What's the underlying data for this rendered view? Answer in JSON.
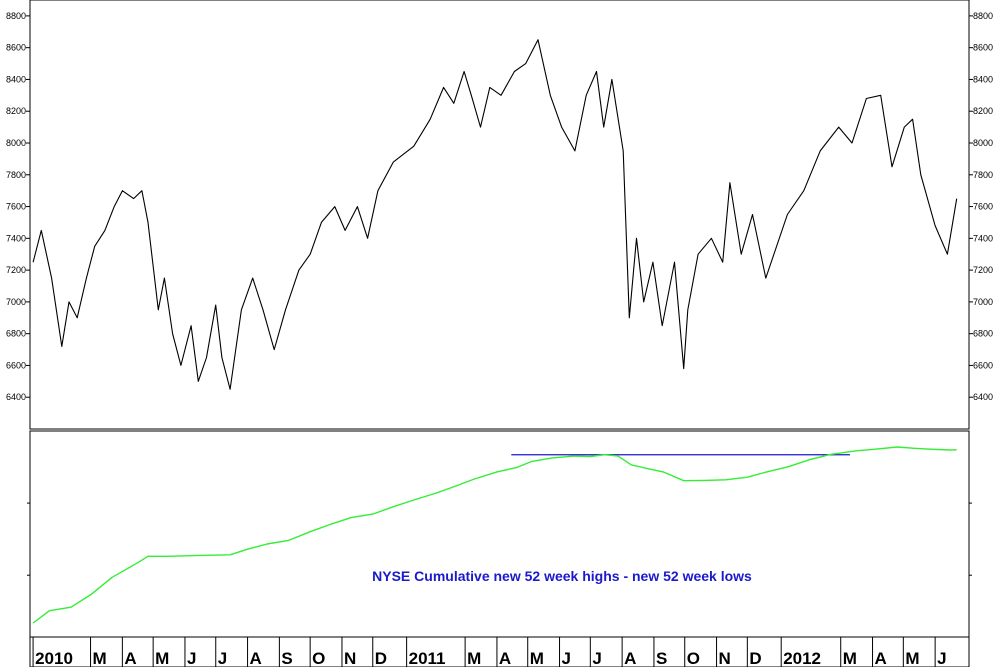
{
  "chart_data": [
    {
      "type": "line",
      "panel": "price",
      "ylim": [
        6200,
        8900
      ],
      "y_ticks": [
        6400,
        6600,
        6800,
        7000,
        7200,
        7400,
        7600,
        7800,
        8000,
        8200,
        8400,
        8600,
        8800
      ],
      "y_tick_labels": [
        "6400",
        "6600",
        "6800",
        "7000",
        "7200",
        "7400",
        "7600",
        "7800",
        "8000",
        "8200",
        "8400",
        "8600",
        "8800"
      ],
      "color": "#000000",
      "series": [
        {
          "x": [
            "2010-01-04",
            "2010-01-12",
            "2010-01-22",
            "2010-02-01",
            "2010-02-08",
            "2010-02-16",
            "2010-02-25",
            "2010-03-05",
            "2010-03-15",
            "2010-03-24",
            "2010-04-01",
            "2010-04-12",
            "2010-04-20",
            "2010-04-26",
            "2010-05-06",
            "2010-05-12",
            "2010-05-20",
            "2010-05-28",
            "2010-06-07",
            "2010-06-14",
            "2010-06-22",
            "2010-07-01",
            "2010-07-07",
            "2010-07-15",
            "2010-07-26",
            "2010-08-06",
            "2010-08-16",
            "2010-08-27",
            "2010-09-07",
            "2010-09-20",
            "2010-10-01",
            "2010-10-12",
            "2010-10-25",
            "2010-11-04",
            "2010-11-16",
            "2010-11-26",
            "2010-12-06",
            "2010-12-21",
            "2011-01-10",
            "2011-01-26",
            "2011-02-08",
            "2011-02-18",
            "2011-02-28",
            "2011-03-07",
            "2011-03-16",
            "2011-03-25",
            "2011-04-05",
            "2011-04-18",
            "2011-04-29",
            "2011-05-11",
            "2011-05-23",
            "2011-06-03",
            "2011-06-16",
            "2011-06-27",
            "2011-07-07",
            "2011-07-14",
            "2011-07-22",
            "2011-08-02",
            "2011-08-08",
            "2011-08-15",
            "2011-08-22",
            "2011-08-31",
            "2011-09-09",
            "2011-09-21",
            "2011-09-30",
            "2011-10-04",
            "2011-10-14",
            "2011-10-27",
            "2011-11-07",
            "2011-11-14",
            "2011-11-25",
            "2011-12-06",
            "2011-12-19",
            "2012-01-09",
            "2012-01-25",
            "2012-02-10",
            "2012-02-28",
            "2012-03-12",
            "2012-03-26",
            "2012-04-09",
            "2012-04-20",
            "2012-05-02",
            "2012-05-10",
            "2012-05-18",
            "2012-06-01",
            "2012-06-13",
            "2012-06-22"
          ],
          "y": [
            7250,
            7450,
            7150,
            6720,
            7000,
            6900,
            7150,
            7350,
            7450,
            7600,
            7700,
            7650,
            7700,
            7500,
            6950,
            7150,
            6800,
            6600,
            6850,
            6500,
            6650,
            6980,
            6650,
            6450,
            6950,
            7150,
            6950,
            6700,
            6950,
            7200,
            7300,
            7500,
            7600,
            7450,
            7600,
            7400,
            7700,
            7880,
            7980,
            8150,
            8350,
            8250,
            8450,
            8300,
            8100,
            8350,
            8300,
            8450,
            8500,
            8650,
            8300,
            8100,
            7950,
            8300,
            8450,
            8100,
            8400,
            7950,
            6900,
            7400,
            7000,
            7250,
            6850,
            7250,
            6580,
            6950,
            7300,
            7400,
            7250,
            7750,
            7300,
            7550,
            7150,
            7550,
            7700,
            7950,
            8100,
            8000,
            8280,
            8300,
            7850,
            8100,
            8150,
            7800,
            7480,
            7300,
            7650
          ]
        }
      ]
    },
    {
      "type": "line",
      "panel": "indicator",
      "annotation": "NYSE Cumulative new 52 week highs - new 52 week lows",
      "annotation_color": "#1a1acc",
      "color": "#33ee33",
      "reference_line": {
        "from": "2011-04-15",
        "to": "2012-03-10",
        "color": "#1a1acc"
      },
      "series": [
        {
          "x": [
            "2010-01-04",
            "2010-01-20",
            "2010-02-10",
            "2010-03-01",
            "2010-03-22",
            "2010-04-15",
            "2010-04-26",
            "2010-05-15",
            "2010-06-15",
            "2010-07-15",
            "2010-08-01",
            "2010-08-20",
            "2010-09-10",
            "2010-10-01",
            "2010-10-20",
            "2010-11-10",
            "2010-12-01",
            "2010-12-20",
            "2011-01-10",
            "2011-02-01",
            "2011-02-20",
            "2011-03-10",
            "2011-04-01",
            "2011-04-20",
            "2011-05-05",
            "2011-05-25",
            "2011-06-15",
            "2011-07-01",
            "2011-07-15",
            "2011-07-28",
            "2011-08-10",
            "2011-08-25",
            "2011-09-10",
            "2011-09-30",
            "2011-10-20",
            "2011-11-10",
            "2011-12-01",
            "2011-12-20",
            "2012-01-10",
            "2012-01-31",
            "2012-02-20",
            "2012-03-15",
            "2012-04-05",
            "2012-04-25",
            "2012-05-10",
            "2012-05-25",
            "2012-06-15",
            "2012-06-22"
          ],
          "y": [
            0,
            70,
            90,
            160,
            260,
            340,
            380,
            380,
            385,
            388,
            420,
            450,
            470,
            520,
            560,
            600,
            620,
            660,
            700,
            740,
            780,
            820,
            860,
            885,
            920,
            940,
            950,
            948,
            958,
            950,
            900,
            880,
            860,
            810,
            812,
            815,
            830,
            860,
            890,
            930,
            960,
            980,
            990,
            1002,
            995,
            990,
            985,
            986
          ]
        }
      ]
    }
  ],
  "x_axis": {
    "labels": [
      {
        "text": "2010",
        "date": "2010-01-04"
      },
      {
        "text": "M",
        "date": "2010-03-01"
      },
      {
        "text": "A",
        "date": "2010-04-01"
      },
      {
        "text": "M",
        "date": "2010-05-01"
      },
      {
        "text": "J",
        "date": "2010-06-01"
      },
      {
        "text": "J",
        "date": "2010-07-01"
      },
      {
        "text": "A",
        "date": "2010-08-01"
      },
      {
        "text": "S",
        "date": "2010-09-01"
      },
      {
        "text": "O",
        "date": "2010-10-01"
      },
      {
        "text": "N",
        "date": "2010-11-01"
      },
      {
        "text": "D",
        "date": "2010-12-01"
      },
      {
        "text": "2011",
        "date": "2011-01-03"
      },
      {
        "text": "M",
        "date": "2011-03-01"
      },
      {
        "text": "A",
        "date": "2011-04-01"
      },
      {
        "text": "M",
        "date": "2011-05-01"
      },
      {
        "text": "J",
        "date": "2011-06-01"
      },
      {
        "text": "J",
        "date": "2011-07-01"
      },
      {
        "text": "A",
        "date": "2011-08-01"
      },
      {
        "text": "S",
        "date": "2011-09-01"
      },
      {
        "text": "O",
        "date": "2011-10-01"
      },
      {
        "text": "N",
        "date": "2011-11-01"
      },
      {
        "text": "D",
        "date": "2011-12-01"
      },
      {
        "text": "2012",
        "date": "2012-01-03"
      },
      {
        "text": "M",
        "date": "2012-03-01"
      },
      {
        "text": "A",
        "date": "2012-04-01"
      },
      {
        "text": "M",
        "date": "2012-05-01"
      },
      {
        "text": "J",
        "date": "2012-06-01"
      }
    ],
    "xlim": [
      "2010-01-01",
      "2012-07-04"
    ]
  }
}
